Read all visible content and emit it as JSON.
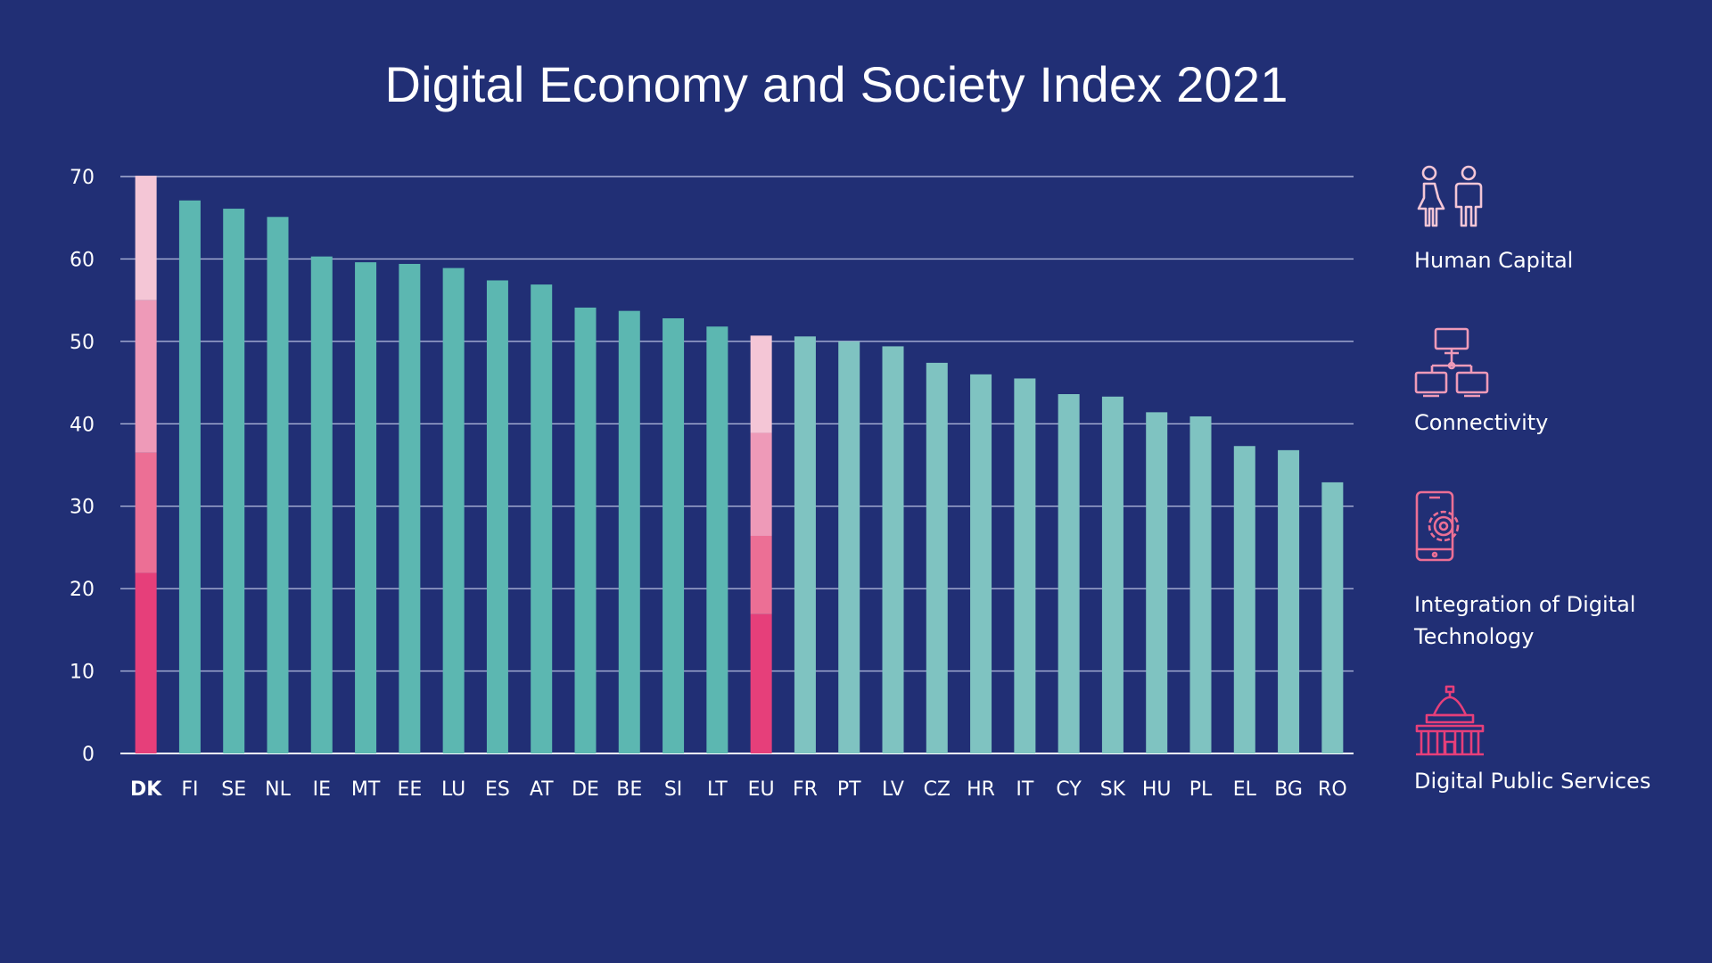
{
  "chart_data": {
    "type": "bar",
    "title": "Digital Economy and Society Index 2021",
    "xlabel": "",
    "ylabel": "",
    "ylim": [
      0,
      70
    ],
    "yticks": [
      0,
      10,
      20,
      30,
      40,
      50,
      60,
      70
    ],
    "grid": true,
    "legend_position": "right",
    "categories": [
      "DK",
      "FI",
      "SE",
      "NL",
      "IE",
      "MT",
      "EE",
      "LU",
      "ES",
      "AT",
      "DE",
      "BE",
      "SI",
      "LT",
      "EU",
      "FR",
      "PT",
      "LV",
      "CZ",
      "HR",
      "IT",
      "CY",
      "SK",
      "HU",
      "PL",
      "EL",
      "BG",
      "RO"
    ],
    "values": [
      70.1,
      67.1,
      66.1,
      65.1,
      60.3,
      59.6,
      59.4,
      58.9,
      57.4,
      56.9,
      54.1,
      53.7,
      52.8,
      51.8,
      50.7,
      50.6,
      50.0,
      49.4,
      47.4,
      46.0,
      45.5,
      43.6,
      43.3,
      41.4,
      40.9,
      37.3,
      36.8,
      32.9
    ],
    "highlight_category": "DK",
    "stacked_breakdown": {
      "DK": [
        21.9,
        14.6,
        18.5,
        15.1
      ],
      "EU": [
        16.9,
        9.5,
        12.5,
        11.8
      ]
    },
    "series": [
      {
        "name": "Human Capital",
        "color": "#f4c6d6"
      },
      {
        "name": "Connectivity",
        "color": "#ee9ab8"
      },
      {
        "name": "Integration of Digital Technology",
        "color": "#ec6f95"
      },
      {
        "name": "Digital Public Services",
        "color": "#e63f7a"
      }
    ],
    "colors": {
      "background": "#212f75",
      "bar_top_group": "#5cb7b1",
      "bar_bottom_group": "#7fc3c1",
      "gridline": "#aab2d6",
      "text": "#ffffff"
    },
    "top_group_categories": [
      "FI",
      "SE",
      "NL",
      "IE",
      "MT",
      "EE",
      "LU",
      "ES",
      "AT",
      "DE",
      "BE",
      "SI",
      "LT"
    ]
  },
  "legend": {
    "items": [
      {
        "label": "Human Capital",
        "icon": "people-icon",
        "color": "#f4c6d6"
      },
      {
        "label": "Connectivity",
        "icon": "network-icon",
        "color": "#ee9ab8"
      },
      {
        "label": "Integration of Digital Technology",
        "icon": "phone-gear-icon",
        "color": "#ec6f95"
      },
      {
        "label": "Digital Public Services",
        "icon": "government-building-icon",
        "color": "#e63f7a"
      }
    ]
  }
}
